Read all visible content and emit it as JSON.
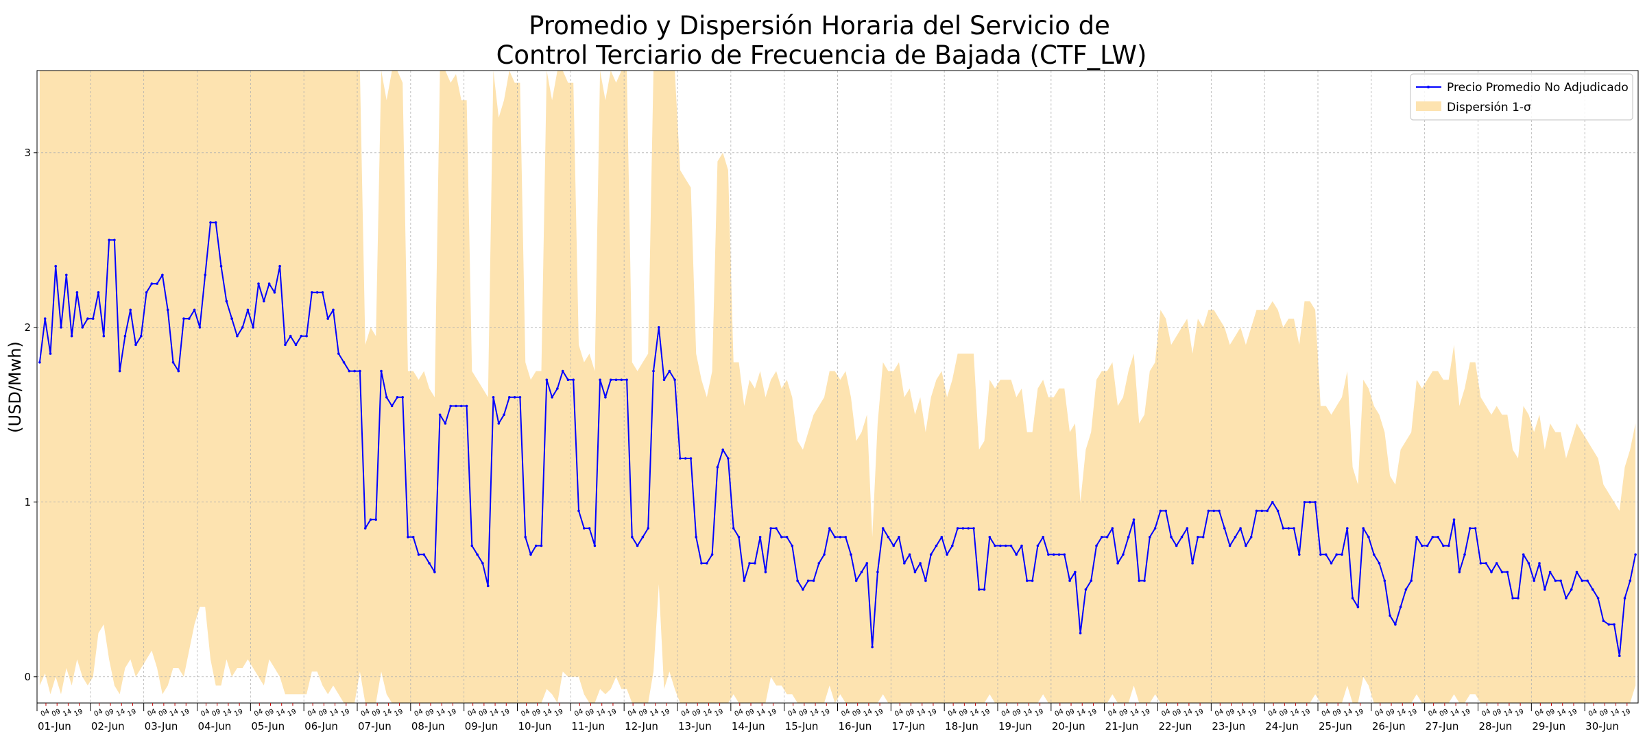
{
  "chart_data": {
    "type": "line",
    "title_line1": "Promedio y Dispersión Horaria del Servicio de",
    "title_line2": "Control Terciario de Frecuencia de Bajada (CTF_LW)",
    "xlabel": "",
    "ylabel": "(USD/Mwh)",
    "ylim": [
      -0.15,
      3.47
    ],
    "yticks": [
      0,
      1,
      2,
      3
    ],
    "grid": true,
    "legend_placement": "top-right",
    "day_labels": [
      "01-Jun",
      "02-Jun",
      "03-Jun",
      "04-Jun",
      "05-Jun",
      "06-Jun",
      "07-Jun",
      "08-Jun",
      "09-Jun",
      "10-Jun",
      "11-Jun",
      "12-Jun",
      "13-Jun",
      "14-Jun",
      "15-Jun",
      "16-Jun",
      "17-Jun",
      "18-Jun",
      "19-Jun",
      "20-Jun",
      "21-Jun",
      "22-Jun",
      "23-Jun",
      "24-Jun",
      "25-Jun",
      "26-Jun",
      "27-Jun",
      "28-Jun",
      "29-Jun",
      "30-Jun"
    ],
    "hour_labels": [
      "04",
      "09",
      "14",
      "19"
    ],
    "hour_offsets": [
      4,
      9,
      14,
      19
    ],
    "colors": {
      "line": "#0000ff",
      "band": "#fde3b0",
      "grid": "#b0b0b0"
    },
    "series": [
      {
        "name": "Precio Promedio No Adjudicado",
        "role": "mean",
        "daily_points": [
          {
            "day": 1,
            "values": [
              1.8,
              2.05,
              1.85,
              2.35,
              2.0,
              2.3,
              1.95,
              2.2,
              2.0,
              2.05
            ]
          },
          {
            "day": 2,
            "values": [
              2.05,
              2.2,
              1.95,
              2.5,
              2.5,
              1.75,
              1.95,
              2.1,
              1.9,
              1.95
            ]
          },
          {
            "day": 3,
            "values": [
              2.2,
              2.25,
              2.25,
              2.3,
              2.1,
              1.8,
              1.75,
              2.05,
              2.05,
              2.1
            ]
          },
          {
            "day": 4,
            "values": [
              2.0,
              2.3,
              2.6,
              2.6,
              2.35,
              2.15,
              2.05,
              1.95,
              2.0,
              2.1
            ]
          },
          {
            "day": 5,
            "values": [
              2.0,
              2.25,
              2.15,
              2.25,
              2.2,
              2.35,
              1.9,
              1.95,
              1.9,
              1.95
            ]
          },
          {
            "day": 6,
            "values": [
              1.95,
              2.2,
              2.2,
              2.2,
              2.05,
              2.1,
              1.85,
              1.8,
              1.75,
              1.75
            ]
          },
          {
            "day": 7,
            "values": [
              1.75,
              0.85,
              0.9,
              0.9,
              1.75,
              1.6,
              1.55,
              1.6,
              1.6,
              0.8
            ]
          },
          {
            "day": 8,
            "values": [
              0.8,
              0.7,
              0.7,
              0.65,
              0.6,
              1.5,
              1.45,
              1.55,
              1.55,
              1.55
            ]
          },
          {
            "day": 9,
            "values": [
              1.55,
              0.75,
              0.7,
              0.65,
              0.52,
              1.6,
              1.45,
              1.5,
              1.6,
              1.6
            ]
          },
          {
            "day": 10,
            "values": [
              1.6,
              0.8,
              0.7,
              0.75,
              0.75,
              1.7,
              1.6,
              1.65,
              1.75,
              1.7
            ]
          },
          {
            "day": 11,
            "values": [
              1.7,
              0.95,
              0.85,
              0.85,
              0.75,
              1.7,
              1.6,
              1.7,
              1.7,
              1.7
            ]
          },
          {
            "day": 12,
            "values": [
              1.7,
              0.8,
              0.75,
              0.8,
              0.85,
              1.75,
              2.0,
              1.7,
              1.75,
              1.7
            ]
          },
          {
            "day": 13,
            "values": [
              1.25,
              1.25,
              1.25,
              0.8,
              0.65,
              0.65,
              0.7,
              1.2,
              1.3,
              1.25
            ]
          },
          {
            "day": 14,
            "values": [
              0.85,
              0.8,
              0.55,
              0.65,
              0.65,
              0.8,
              0.6,
              0.85,
              0.85,
              0.8
            ]
          },
          {
            "day": 15,
            "values": [
              0.8,
              0.75,
              0.55,
              0.5,
              0.55,
              0.55,
              0.65,
              0.7,
              0.85,
              0.8
            ]
          },
          {
            "day": 16,
            "values": [
              0.8,
              0.8,
              0.7,
              0.55,
              0.6,
              0.65,
              0.17,
              0.6,
              0.85,
              0.8
            ]
          },
          {
            "day": 17,
            "values": [
              0.75,
              0.8,
              0.65,
              0.7,
              0.6,
              0.65,
              0.55,
              0.7,
              0.75,
              0.8
            ]
          },
          {
            "day": 18,
            "values": [
              0.7,
              0.75,
              0.85,
              0.85,
              0.85,
              0.85,
              0.5,
              0.5,
              0.8,
              0.75
            ]
          },
          {
            "day": 19,
            "values": [
              0.75,
              0.75,
              0.75,
              0.7,
              0.75,
              0.55,
              0.55,
              0.75,
              0.8,
              0.7
            ]
          },
          {
            "day": 20,
            "values": [
              0.7,
              0.7,
              0.7,
              0.55,
              0.6,
              0.25,
              0.5,
              0.55,
              0.75,
              0.8
            ]
          },
          {
            "day": 21,
            "values": [
              0.8,
              0.85,
              0.65,
              0.7,
              0.8,
              0.9,
              0.55,
              0.55,
              0.8,
              0.85
            ]
          },
          {
            "day": 22,
            "values": [
              0.95,
              0.95,
              0.8,
              0.75,
              0.8,
              0.85,
              0.65,
              0.8,
              0.8,
              0.95
            ]
          },
          {
            "day": 23,
            "values": [
              0.95,
              0.95,
              0.85,
              0.75,
              0.8,
              0.85,
              0.75,
              0.8,
              0.95,
              0.95
            ]
          },
          {
            "day": 24,
            "values": [
              0.95,
              1.0,
              0.95,
              0.85,
              0.85,
              0.85,
              0.7,
              1.0,
              1.0,
              1.0
            ]
          },
          {
            "day": 25,
            "values": [
              0.7,
              0.7,
              0.65,
              0.7,
              0.7,
              0.85,
              0.45,
              0.4,
              0.85,
              0.8
            ]
          },
          {
            "day": 26,
            "values": [
              0.7,
              0.65,
              0.55,
              0.35,
              0.3,
              0.4,
              0.5,
              0.55,
              0.8,
              0.75
            ]
          },
          {
            "day": 27,
            "values": [
              0.75,
              0.8,
              0.8,
              0.75,
              0.75,
              0.9,
              0.6,
              0.7,
              0.85,
              0.85
            ]
          },
          {
            "day": 28,
            "values": [
              0.65,
              0.65,
              0.6,
              0.65,
              0.6,
              0.6,
              0.45,
              0.45,
              0.7,
              0.65
            ]
          },
          {
            "day": 29,
            "values": [
              0.55,
              0.65,
              0.5,
              0.6,
              0.55,
              0.55,
              0.45,
              0.5,
              0.6,
              0.55
            ]
          },
          {
            "day": 30,
            "values": [
              0.55,
              0.5,
              0.45,
              0.32,
              0.3,
              0.3,
              0.12,
              0.45,
              0.55,
              0.7
            ]
          }
        ]
      },
      {
        "name": "Dispersión 1-σ",
        "role": "band",
        "daily_points": [
          {
            "day": 1,
            "upper": [
              3.47,
              3.47,
              3.47,
              3.47,
              3.47,
              3.47,
              3.47,
              3.47,
              3.47,
              3.47
            ],
            "lower": [
              -0.05,
              0.02,
              -0.1,
              0.0,
              -0.1,
              0.05,
              -0.05,
              0.1,
              0.0,
              -0.05
            ]
          },
          {
            "day": 2,
            "upper": [
              3.47,
              3.47,
              3.47,
              3.47,
              3.47,
              3.47,
              3.47,
              3.47,
              3.47,
              3.47
            ],
            "lower": [
              0.0,
              0.25,
              0.3,
              0.1,
              -0.05,
              -0.1,
              0.05,
              0.1,
              0.0,
              0.05
            ]
          },
          {
            "day": 3,
            "upper": [
              3.47,
              3.47,
              3.47,
              3.47,
              3.47,
              3.47,
              3.47,
              3.47,
              3.47,
              3.47
            ],
            "lower": [
              0.1,
              0.15,
              0.05,
              -0.1,
              -0.05,
              0.05,
              0.05,
              0.0,
              0.15,
              0.3
            ]
          },
          {
            "day": 4,
            "upper": [
              3.47,
              3.47,
              3.47,
              3.47,
              3.47,
              3.47,
              3.47,
              3.47,
              3.47,
              3.47
            ],
            "lower": [
              0.4,
              0.4,
              0.1,
              -0.05,
              -0.05,
              0.1,
              0.0,
              0.05,
              0.05,
              0.1
            ]
          },
          {
            "day": 5,
            "upper": [
              3.47,
              3.47,
              3.47,
              3.47,
              3.47,
              3.47,
              3.47,
              3.47,
              3.47,
              3.47
            ],
            "lower": [
              0.05,
              0.0,
              -0.05,
              0.1,
              0.05,
              0.0,
              -0.1,
              -0.1,
              -0.1,
              -0.1
            ]
          },
          {
            "day": 6,
            "upper": [
              3.47,
              3.47,
              3.47,
              3.47,
              3.47,
              3.47,
              3.47,
              3.47,
              3.47,
              3.47
            ],
            "lower": [
              -0.1,
              0.03,
              0.03,
              -0.05,
              -0.1,
              -0.05,
              -0.1,
              -0.15,
              -0.15,
              -0.15
            ]
          },
          {
            "day": 7,
            "upper": [
              3.47,
              1.9,
              2.0,
              1.95,
              3.47,
              3.3,
              3.47,
              3.47,
              3.4,
              1.75
            ]
          },
          {
            "day": 8,
            "upper": [
              1.75,
              1.7,
              1.75,
              1.65,
              1.6,
              3.47,
              3.47,
              3.4,
              3.45,
              3.3
            ]
          },
          {
            "day": 9,
            "upper": [
              3.3,
              1.75,
              1.7,
              1.65,
              1.6,
              3.47,
              3.2,
              3.3,
              3.47,
              3.4
            ]
          },
          {
            "day": 10,
            "upper": [
              3.4,
              1.8,
              1.7,
              1.75,
              1.75,
              3.47,
              3.3,
              3.47,
              3.47,
              3.4
            ]
          },
          {
            "day": 11,
            "upper": [
              3.4,
              1.9,
              1.8,
              1.85,
              1.75,
              3.47,
              3.3,
              3.47,
              3.4,
              3.47
            ]
          },
          {
            "day": 12,
            "upper": [
              3.47,
              1.8,
              1.75,
              1.8,
              1.85,
              3.47,
              3.47,
              3.47,
              3.47,
              3.47
            ]
          },
          {
            "day": 13,
            "upper": [
              2.9,
              2.85,
              2.8,
              1.85,
              1.7,
              1.6,
              1.75,
              2.95,
              3.0,
              2.9
            ]
          },
          {
            "day": 14,
            "upper": [
              1.8,
              1.8,
              1.55,
              1.7,
              1.65,
              1.75,
              1.6,
              1.7,
              1.75,
              1.65
            ]
          },
          {
            "day": 15,
            "upper": [
              1.7,
              1.6,
              1.35,
              1.3,
              1.4,
              1.5,
              1.55,
              1.6,
              1.75,
              1.75
            ]
          },
          {
            "day": 16,
            "upper": [
              1.7,
              1.75,
              1.6,
              1.35,
              1.4,
              1.5,
              0.8,
              1.45,
              1.8,
              1.75
            ]
          },
          {
            "day": 17,
            "upper": [
              1.75,
              1.8,
              1.6,
              1.65,
              1.5,
              1.6,
              1.4,
              1.6,
              1.7,
              1.75
            ]
          },
          {
            "day": 18,
            "upper": [
              1.6,
              1.7,
              1.85,
              1.85,
              1.85,
              1.85,
              1.3,
              1.35,
              1.7,
              1.65
            ]
          },
          {
            "day": 19,
            "upper": [
              1.7,
              1.7,
              1.7,
              1.6,
              1.65,
              1.4,
              1.4,
              1.65,
              1.7,
              1.6
            ]
          },
          {
            "day": 20,
            "upper": [
              1.6,
              1.65,
              1.65,
              1.4,
              1.45,
              1.0,
              1.3,
              1.4,
              1.7,
              1.75
            ]
          },
          {
            "day": 21,
            "upper": [
              1.75,
              1.8,
              1.55,
              1.6,
              1.75,
              1.85,
              1.45,
              1.5,
              1.75,
              1.8
            ]
          },
          {
            "day": 22,
            "upper": [
              2.1,
              2.05,
              1.9,
              1.95,
              2.0,
              2.05,
              1.85,
              2.05,
              2.0,
              2.1
            ]
          },
          {
            "day": 23,
            "upper": [
              2.1,
              2.05,
              2.0,
              1.9,
              1.95,
              2.0,
              1.9,
              2.0,
              2.1,
              2.1
            ]
          },
          {
            "day": 24,
            "upper": [
              2.1,
              2.15,
              2.1,
              2.0,
              2.05,
              2.05,
              1.9,
              2.15,
              2.15,
              2.1
            ]
          },
          {
            "day": 25,
            "upper": [
              1.55,
              1.55,
              1.5,
              1.55,
              1.6,
              1.75,
              1.2,
              1.1,
              1.7,
              1.65
            ]
          },
          {
            "day": 26,
            "upper": [
              1.55,
              1.5,
              1.4,
              1.15,
              1.1,
              1.3,
              1.35,
              1.4,
              1.7,
              1.65
            ]
          },
          {
            "day": 27,
            "upper": [
              1.7,
              1.75,
              1.75,
              1.7,
              1.7,
              1.9,
              1.55,
              1.65,
              1.8,
              1.8
            ]
          },
          {
            "day": 28,
            "upper": [
              1.6,
              1.55,
              1.5,
              1.55,
              1.5,
              1.5,
              1.3,
              1.25,
              1.55,
              1.5
            ]
          },
          {
            "day": 29,
            "upper": [
              1.4,
              1.5,
              1.3,
              1.45,
              1.4,
              1.4,
              1.25,
              1.35,
              1.45,
              1.4
            ]
          },
          {
            "day": 30,
            "upper": [
              1.35,
              1.3,
              1.25,
              1.1,
              1.05,
              1.0,
              0.95,
              1.2,
              1.3,
              1.45
            ]
          }
        ]
      }
    ],
    "legend": [
      {
        "label": "Precio Promedio No Adjudicado",
        "kind": "line"
      },
      {
        "label": "Dispersión 1-σ",
        "kind": "band"
      }
    ]
  }
}
